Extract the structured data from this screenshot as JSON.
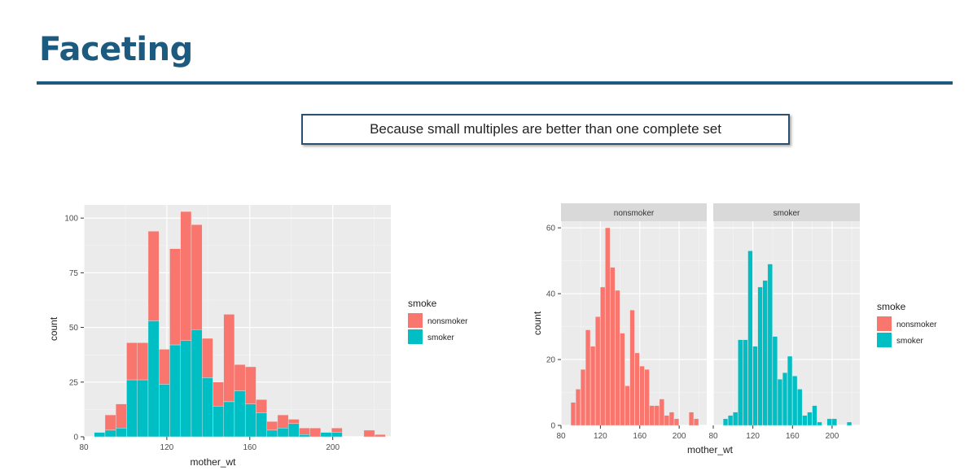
{
  "slide": {
    "title": "Faceting",
    "callout": "Because small multiples are better than one complete set"
  },
  "colors": {
    "nonsmoker": "#f8766d",
    "smoker": "#00bfc4",
    "panel": "#ebebeb",
    "strip": "#d9d9d9",
    "title": "#1d5a7f"
  },
  "chart_data": [
    {
      "type": "bar",
      "subtype": "stacked-histogram",
      "xlabel": "mother_wt",
      "ylabel": "count",
      "xlim": [
        80,
        228
      ],
      "ylim": [
        0,
        106
      ],
      "xticks": [
        80,
        120,
        160,
        200
      ],
      "yticks": [
        0,
        25,
        50,
        75,
        100
      ],
      "grid": true,
      "legend": {
        "title": "smoke",
        "position": "right",
        "entries": [
          "nonsmoker",
          "smoker"
        ]
      },
      "binwidth": 5.2,
      "bin_starts": [
        85.0,
        90.2,
        95.4,
        100.6,
        105.8,
        111.0,
        116.2,
        121.4,
        126.6,
        131.8,
        137.0,
        142.2,
        147.4,
        152.6,
        157.8,
        163.0,
        168.2,
        173.4,
        178.6,
        183.8,
        189.0,
        194.2,
        199.4,
        204.6,
        209.8,
        215.0,
        220.2
      ],
      "series": [
        {
          "name": "smoker",
          "values": [
            2,
            3,
            4,
            26,
            26,
            53,
            24,
            42,
            44,
            49,
            27,
            14,
            16,
            21,
            15,
            11,
            3,
            4,
            6,
            1,
            0,
            2,
            2,
            0,
            0,
            0,
            0
          ]
        },
        {
          "name": "nonsmoker",
          "values": [
            0,
            7,
            11,
            17,
            17,
            41,
            16,
            44,
            59,
            48,
            18,
            11,
            40,
            12,
            17,
            6,
            4,
            6,
            2,
            3,
            4,
            0,
            2,
            0,
            0,
            3,
            1
          ]
        }
      ]
    },
    {
      "type": "bar",
      "subtype": "faceted-histogram",
      "xlabel": "mother_wt",
      "ylabel": "count",
      "xlim": [
        80,
        228
      ],
      "ylim": [
        0,
        62
      ],
      "xticks": [
        80,
        120,
        160,
        200
      ],
      "yticks": [
        0,
        20,
        40,
        60
      ],
      "grid": true,
      "legend": {
        "title": "smoke",
        "position": "right",
        "entries": [
          "nonsmoker",
          "smoker"
        ]
      },
      "binwidth": 5.2,
      "facets": [
        {
          "label": "nonsmoker",
          "bin_starts": [
            90,
            95,
            100,
            105,
            110,
            115,
            120,
            125,
            130,
            135,
            140,
            145,
            150,
            155,
            160,
            165,
            170,
            175,
            180,
            185,
            190,
            195,
            200,
            205,
            210,
            215
          ],
          "values": [
            7,
            11,
            17,
            29,
            24,
            33,
            42,
            60,
            48,
            41,
            28,
            12,
            35,
            22,
            18,
            17,
            6,
            6,
            8,
            3,
            4,
            2,
            0,
            0,
            4,
            2
          ]
        },
        {
          "label": "smoker",
          "bin_starts": [
            90,
            95,
            100,
            105,
            110,
            115,
            120,
            125,
            130,
            135,
            140,
            145,
            150,
            155,
            160,
            165,
            170,
            175,
            180,
            185,
            190,
            195,
            200,
            205,
            210,
            215
          ],
          "values": [
            2,
            3,
            4,
            26,
            26,
            53,
            24,
            42,
            44,
            49,
            27,
            14,
            16,
            21,
            15,
            11,
            3,
            4,
            6,
            1,
            0,
            2,
            2,
            0,
            0,
            1
          ]
        }
      ]
    }
  ]
}
